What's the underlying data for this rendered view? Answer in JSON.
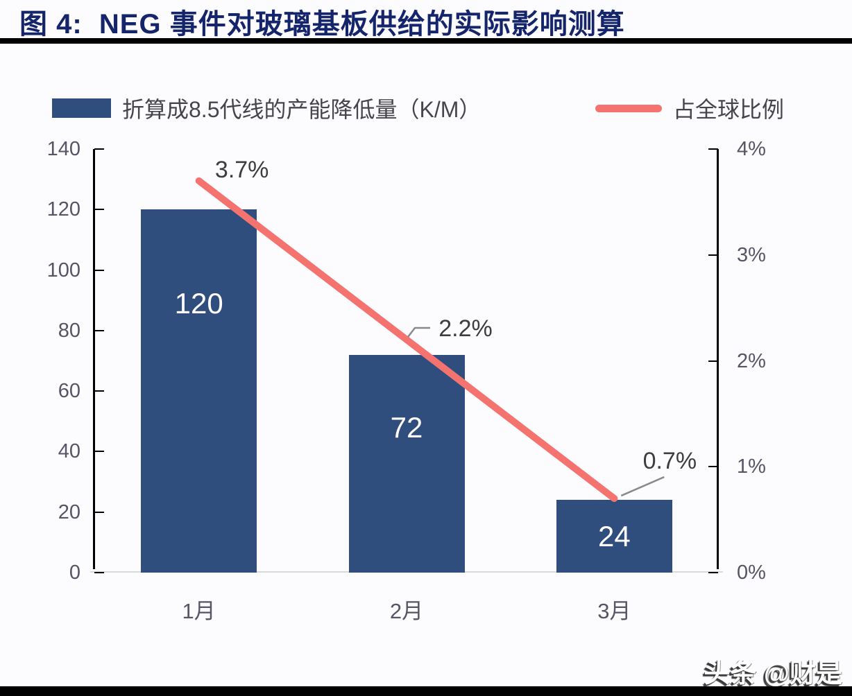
{
  "page": {
    "title": "图 4:  NEG 事件对玻璃基板供给的实际影响测算",
    "watermark": "头条 @财是"
  },
  "colors": {
    "title_navy": "#15256c",
    "bar_navy": "#2F4E7D",
    "line_salmon": "#F5736F",
    "axis_text": "#555566",
    "legend_text": "#45454c",
    "callout_text": "#3d3d3d",
    "leader_gray": "#8a8a8a",
    "baseline_gray": "#d9d9d9",
    "rule_black": "#000000"
  },
  "chart_data": {
    "type": "bar",
    "subtype": "bar-line-combo",
    "title": "图 4:  NEG 事件对玻璃基板供给的实际影响测算",
    "categories": [
      "1月",
      "2月",
      "3月"
    ],
    "series": [
      {
        "name": "折算成8.5代线的产能降低量（K/M）",
        "type": "bar",
        "axis": "left",
        "values": [
          120,
          72,
          24
        ],
        "labels": [
          "120",
          "72",
          "24"
        ],
        "color": "#2F4E7D"
      },
      {
        "name": "占全球比例",
        "type": "line",
        "axis": "right",
        "values": [
          3.7,
          2.2,
          0.7
        ],
        "labels": [
          "3.7%",
          "2.2%",
          "0.7%"
        ],
        "color": "#F5736F"
      }
    ],
    "axes": {
      "left": {
        "ticks": [
          "140",
          "120",
          "100",
          "80",
          "60",
          "40",
          "20",
          "0"
        ],
        "min": 0,
        "max": 140
      },
      "right": {
        "ticks": [
          "4%",
          "3%",
          "2%",
          "1%",
          "0%"
        ],
        "min": 0,
        "max": 4
      }
    },
    "legend_position": "top",
    "grid": false
  }
}
